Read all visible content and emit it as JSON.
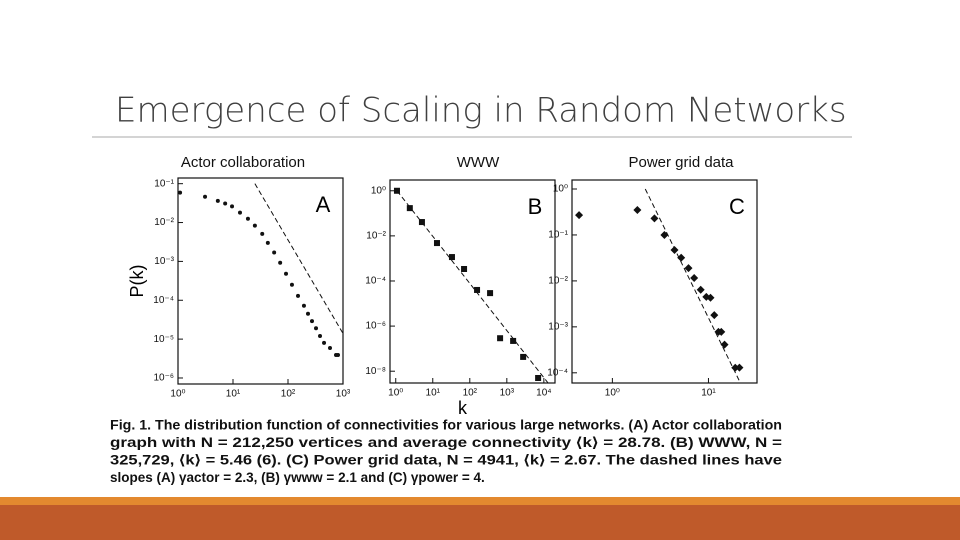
{
  "title": "Emergence of Scaling in Random Networks",
  "chart_data": [
    {
      "type": "scatter",
      "subtitle": "Actor collaboration",
      "panel": "A",
      "ylabel": "P(k)",
      "log": true,
      "marker": "circle",
      "color": "#111111",
      "xlim": [
        1,
        1000
      ],
      "ylim": [
        7e-07,
        0.14
      ],
      "xticks": [
        {
          "value": 1,
          "label": "10⁰"
        },
        {
          "value": 10,
          "label": "10¹"
        },
        {
          "value": 100,
          "label": "10²"
        },
        {
          "value": 1000,
          "label": "10³"
        }
      ],
      "yticks": [
        {
          "value": 0.1,
          "label": "10⁻¹"
        },
        {
          "value": 0.01,
          "label": "10⁻²"
        },
        {
          "value": 0.001,
          "label": "10⁻³"
        },
        {
          "value": 0.0001,
          "label": "10⁻⁴"
        },
        {
          "value": 1e-05,
          "label": "10⁻⁵"
        },
        {
          "value": 1e-06,
          "label": "10⁻⁶"
        }
      ],
      "x": [
        1.09,
        3.1,
        5.3,
        7.2,
        9.6,
        13.4,
        18.7,
        25,
        34,
        43,
        56,
        72,
        92,
        118,
        152,
        195,
        231,
        273,
        323,
        382,
        452,
        580,
        746,
        811
      ],
      "y": [
        0.059,
        0.046,
        0.036,
        0.031,
        0.026,
        0.018,
        0.0125,
        0.0083,
        0.0051,
        0.003,
        0.0017,
        0.00092,
        0.00048,
        0.00025,
        0.00013,
        7.2e-05,
        4.5e-05,
        2.9e-05,
        1.9e-05,
        1.2e-05,
        8e-06,
        5.9e-06,
        3.9e-06,
        3.9e-06
      ],
      "fit": {
        "x": [
          25,
          1000
        ],
        "y": [
          0.1,
          1.4e-05
        ]
      }
    },
    {
      "type": "scatter",
      "subtitle": "WWW",
      "panel": "B",
      "xlabel": "k",
      "log": true,
      "marker": "square",
      "color": "#111111",
      "xlim": [
        0.7,
        20000
      ],
      "ylim": [
        3e-09,
        3
      ],
      "xticks": [
        {
          "value": 1,
          "label": "10⁰"
        },
        {
          "value": 10,
          "label": "10¹"
        },
        {
          "value": 100,
          "label": "10²"
        },
        {
          "value": 1000,
          "label": "10³"
        },
        {
          "value": 10000,
          "label": "10⁴"
        }
      ],
      "yticks": [
        {
          "value": 1,
          "label": "10⁰"
        },
        {
          "value": 0.01,
          "label": "10⁻²"
        },
        {
          "value": 0.0001,
          "label": "10⁻⁴"
        },
        {
          "value": 1e-06,
          "label": "10⁻⁶"
        },
        {
          "value": 1e-08,
          "label": "10⁻⁸"
        }
      ],
      "x": [
        1.08,
        2.4,
        5.1,
        13,
        33,
        70,
        157,
        353,
        658,
        1480,
        2760,
        7000
      ],
      "y": [
        1,
        0.17,
        0.041,
        0.0048,
        0.00115,
        0.00034,
        4e-05,
        2.9e-05,
        2.9e-07,
        2.2e-07,
        4.3e-08,
        5e-09
      ],
      "fit": {
        "x": [
          1.08,
          13000
        ],
        "y": [
          1,
          3e-09
        ]
      }
    },
    {
      "type": "scatter",
      "subtitle": "Power grid data",
      "panel": "C",
      "log": true,
      "marker": "diamond",
      "color": "#111111",
      "xlim": [
        0.38,
        32
      ],
      "ylim": [
        6e-05,
        1.57
      ],
      "xticks": [
        {
          "value": 1,
          "label": "10⁰"
        },
        {
          "value": 10,
          "label": "10¹"
        }
      ],
      "yticks": [
        {
          "value": 1,
          "label": "10⁰"
        },
        {
          "value": 0.1,
          "label": "10⁻¹"
        },
        {
          "value": 0.01,
          "label": "10⁻²"
        },
        {
          "value": 0.001,
          "label": "10⁻³"
        },
        {
          "value": 0.0001,
          "label": "10⁻⁴"
        }
      ],
      "x": [
        0.45,
        1.82,
        2.74,
        3.48,
        4.43,
        5.2,
        6.2,
        7.1,
        8.3,
        9.5,
        10.5,
        11.5,
        12.7,
        13.6,
        14.7,
        19,
        21
      ],
      "y": [
        0.27,
        0.35,
        0.23,
        0.1,
        0.047,
        0.032,
        0.019,
        0.0116,
        0.0064,
        0.0045,
        0.0043,
        0.0018,
        0.00078,
        0.00078,
        0.00041,
        0.000129,
        0.00013
      ],
      "fit": {
        "x": [
          2.2,
          21.5
        ],
        "y": [
          1,
          6e-05
        ]
      }
    }
  ],
  "caption": [
    "Fig. 1. The distribution function of connectivities for various large networks. (A) Actor collaboration",
    "graph with N = 212,250 vertices and average connectivity ⟨k⟩ = 28.78. (B) WWW, N =",
    "325,729, ⟨k⟩ = 5.46 (6). (C) Power grid data, N = 4941, ⟨k⟩ = 2.67. The dashed lines have",
    "slopes (A) γactor = 2.3, (B) γwww = 2.1 and (C) γpower = 4."
  ]
}
